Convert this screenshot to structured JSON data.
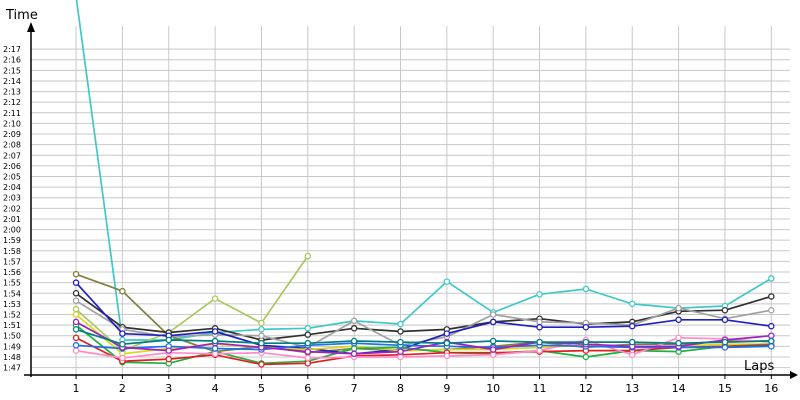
{
  "chart_data": {
    "type": "line",
    "xlabel": "Laps",
    "ylabel": "Time",
    "grid": true,
    "x": [
      1,
      2,
      3,
      4,
      5,
      6,
      7,
      8,
      9,
      10,
      11,
      12,
      13,
      14,
      15,
      16
    ],
    "xlim": [
      0,
      16
    ],
    "ylim": [
      106.3,
      138.8
    ],
    "yticks": [
      "1:47",
      "1:48",
      "1:49",
      "1:50",
      "1:51",
      "1:52",
      "1:53",
      "1:54",
      "1:55",
      "1:56",
      "1:57",
      "1:58",
      "1:59",
      "2:00",
      "2:01",
      "2:02",
      "2:03",
      "2:04",
      "2:05",
      "2:06",
      "2:07",
      "2:08",
      "2:09",
      "2:10",
      "2:11",
      "2:12",
      "2:13",
      "2:14",
      "2:15",
      "2:16",
      "2:17"
    ],
    "series": [
      {
        "color": "#40c8c8",
        "values": [
          142.0,
          109.6,
          109.6,
          110.3,
          110.6,
          110.7,
          111.4,
          111.1,
          115.1,
          112.2,
          113.9,
          114.4,
          113.0,
          112.6,
          112.8,
          115.4
        ]
      },
      {
        "color": "#808040",
        "values": [
          115.8,
          114.2,
          110.0,
          108.5,
          109.0,
          108.4,
          108.8,
          108.6,
          108.7,
          109.0,
          109.4,
          108.9,
          109.2,
          109.2,
          109.5,
          109.5
        ]
      },
      {
        "color": "#a8c860",
        "values": [
          112.5,
          108.6,
          110.3,
          113.5,
          111.2,
          117.5,
          null,
          null,
          null,
          null,
          null,
          null,
          null,
          null,
          null,
          null
        ]
      },
      {
        "color": "#303030",
        "values": [
          114.0,
          110.8,
          110.3,
          110.7,
          109.6,
          110.1,
          110.7,
          110.4,
          110.6,
          111.3,
          111.6,
          111.1,
          111.3,
          112.3,
          112.4,
          113.7
        ]
      },
      {
        "color": "#a0a0a0",
        "values": [
          113.3,
          110.6,
          109.9,
          110.1,
          110.0,
          108.9,
          111.4,
          109.1,
          109.9,
          112.0,
          111.3,
          111.2,
          111.0,
          112.6,
          111.6,
          112.4
        ]
      },
      {
        "color": "#2020c0",
        "values": [
          115.0,
          110.2,
          110.0,
          110.4,
          109.1,
          108.8,
          108.3,
          108.7,
          110.2,
          111.3,
          110.8,
          110.8,
          110.9,
          111.5,
          111.5,
          110.9
        ]
      },
      {
        "color": "#d8d820",
        "values": [
          112.0,
          108.3,
          108.8,
          109.2,
          108.9,
          108.7,
          109.0,
          108.6,
          108.7,
          108.7,
          108.9,
          109.1,
          109.0,
          109.0,
          109.2,
          109.2
        ]
      },
      {
        "color": "#20b040",
        "values": [
          111.0,
          107.5,
          107.4,
          108.5,
          107.4,
          107.6,
          108.8,
          108.9,
          108.4,
          108.3,
          108.6,
          108.0,
          108.6,
          108.5,
          109.0,
          109.2
        ]
      },
      {
        "color": "#e02020",
        "values": [
          109.8,
          107.6,
          107.8,
          108.2,
          107.3,
          107.4,
          108.1,
          108.2,
          108.4,
          108.4,
          108.5,
          108.6,
          108.6,
          108.9,
          109.0,
          109.1
        ]
      },
      {
        "color": "#ff8cc8",
        "values": [
          108.6,
          107.9,
          108.4,
          108.3,
          108.4,
          107.9,
          108.0,
          108.0,
          108.1,
          108.2,
          108.6,
          109.6,
          108.2,
          109.8,
          109.7,
          109.4
        ]
      },
      {
        "color": "#2070e8",
        "values": [
          109.1,
          108.8,
          109.0,
          108.8,
          108.7,
          109.1,
          109.3,
          109.1,
          109.0,
          108.9,
          109.1,
          109.0,
          108.9,
          108.9,
          108.9,
          109.0
        ]
      },
      {
        "color": "#a020c0",
        "values": [
          111.3,
          108.9,
          108.6,
          109.3,
          108.9,
          108.5,
          108.3,
          108.5,
          109.4,
          108.7,
          109.4,
          109.2,
          109.0,
          109.0,
          109.6,
          110.0
        ]
      },
      {
        "color": "#008080",
        "values": [
          110.6,
          109.2,
          109.6,
          109.5,
          109.3,
          109.3,
          109.5,
          109.4,
          109.3,
          109.5,
          109.4,
          109.4,
          109.4,
          109.3,
          109.4,
          109.5
        ]
      }
    ]
  }
}
